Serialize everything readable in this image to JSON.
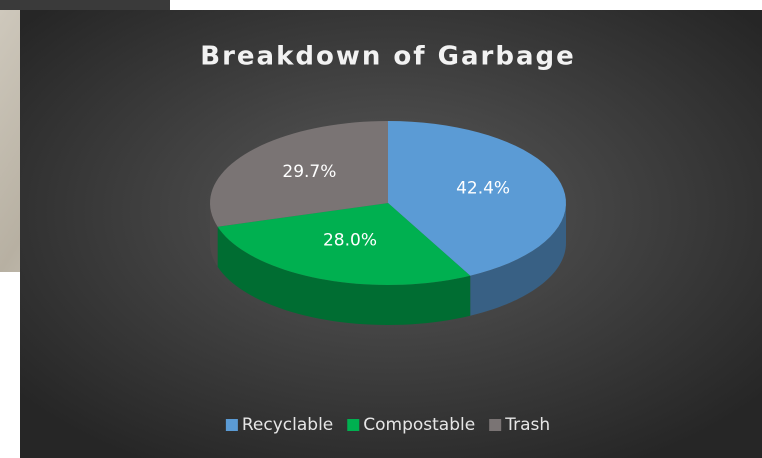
{
  "chart_data": {
    "type": "pie",
    "title": "Breakdown of Garbage",
    "categories": [
      "Recyclable",
      "Compostable",
      "Trash"
    ],
    "values": [
      42.4,
      28.0,
      29.7
    ],
    "value_labels": [
      "42.4%",
      "28.0%",
      "29.7%"
    ],
    "colors": [
      "#5b9bd5",
      "#00b050",
      "#7a7474"
    ],
    "legend": "bottom"
  }
}
